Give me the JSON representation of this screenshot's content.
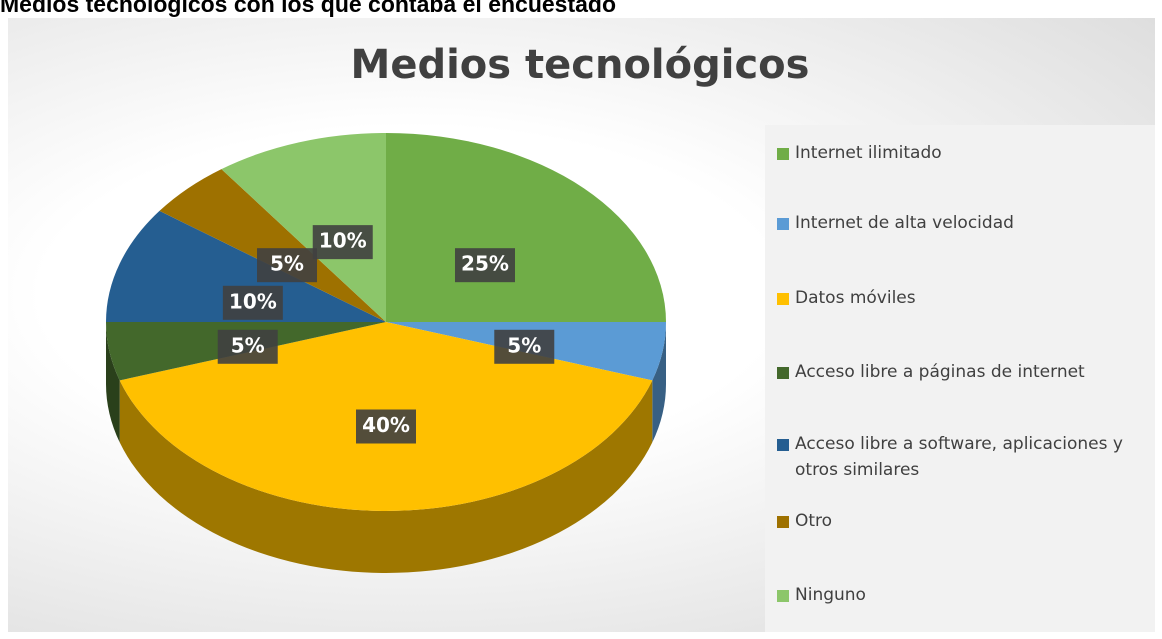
{
  "heading": "Medios tecnológicos con los que contaba el encuestado",
  "chart_data": {
    "type": "pie",
    "title": "Medios tecnológicos",
    "categories": [
      "Internet ilimitado",
      "Internet de alta velocidad",
      "Datos móviles",
      "Acceso libre a páginas de internet",
      "Acceso libre a software, aplicaciones y otros similares",
      "Otro",
      "Ninguno"
    ],
    "values": [
      25,
      5,
      40,
      5,
      10,
      5,
      10
    ],
    "value_labels": [
      "25%",
      "5%",
      "40%",
      "5%",
      "10%",
      "5%",
      "10%"
    ],
    "colors": [
      "#70ad47",
      "#5b9bd5",
      "#ffc000",
      "#43682b",
      "#255e91",
      "#9e7100",
      "#8cc66a"
    ],
    "legend": "right"
  }
}
